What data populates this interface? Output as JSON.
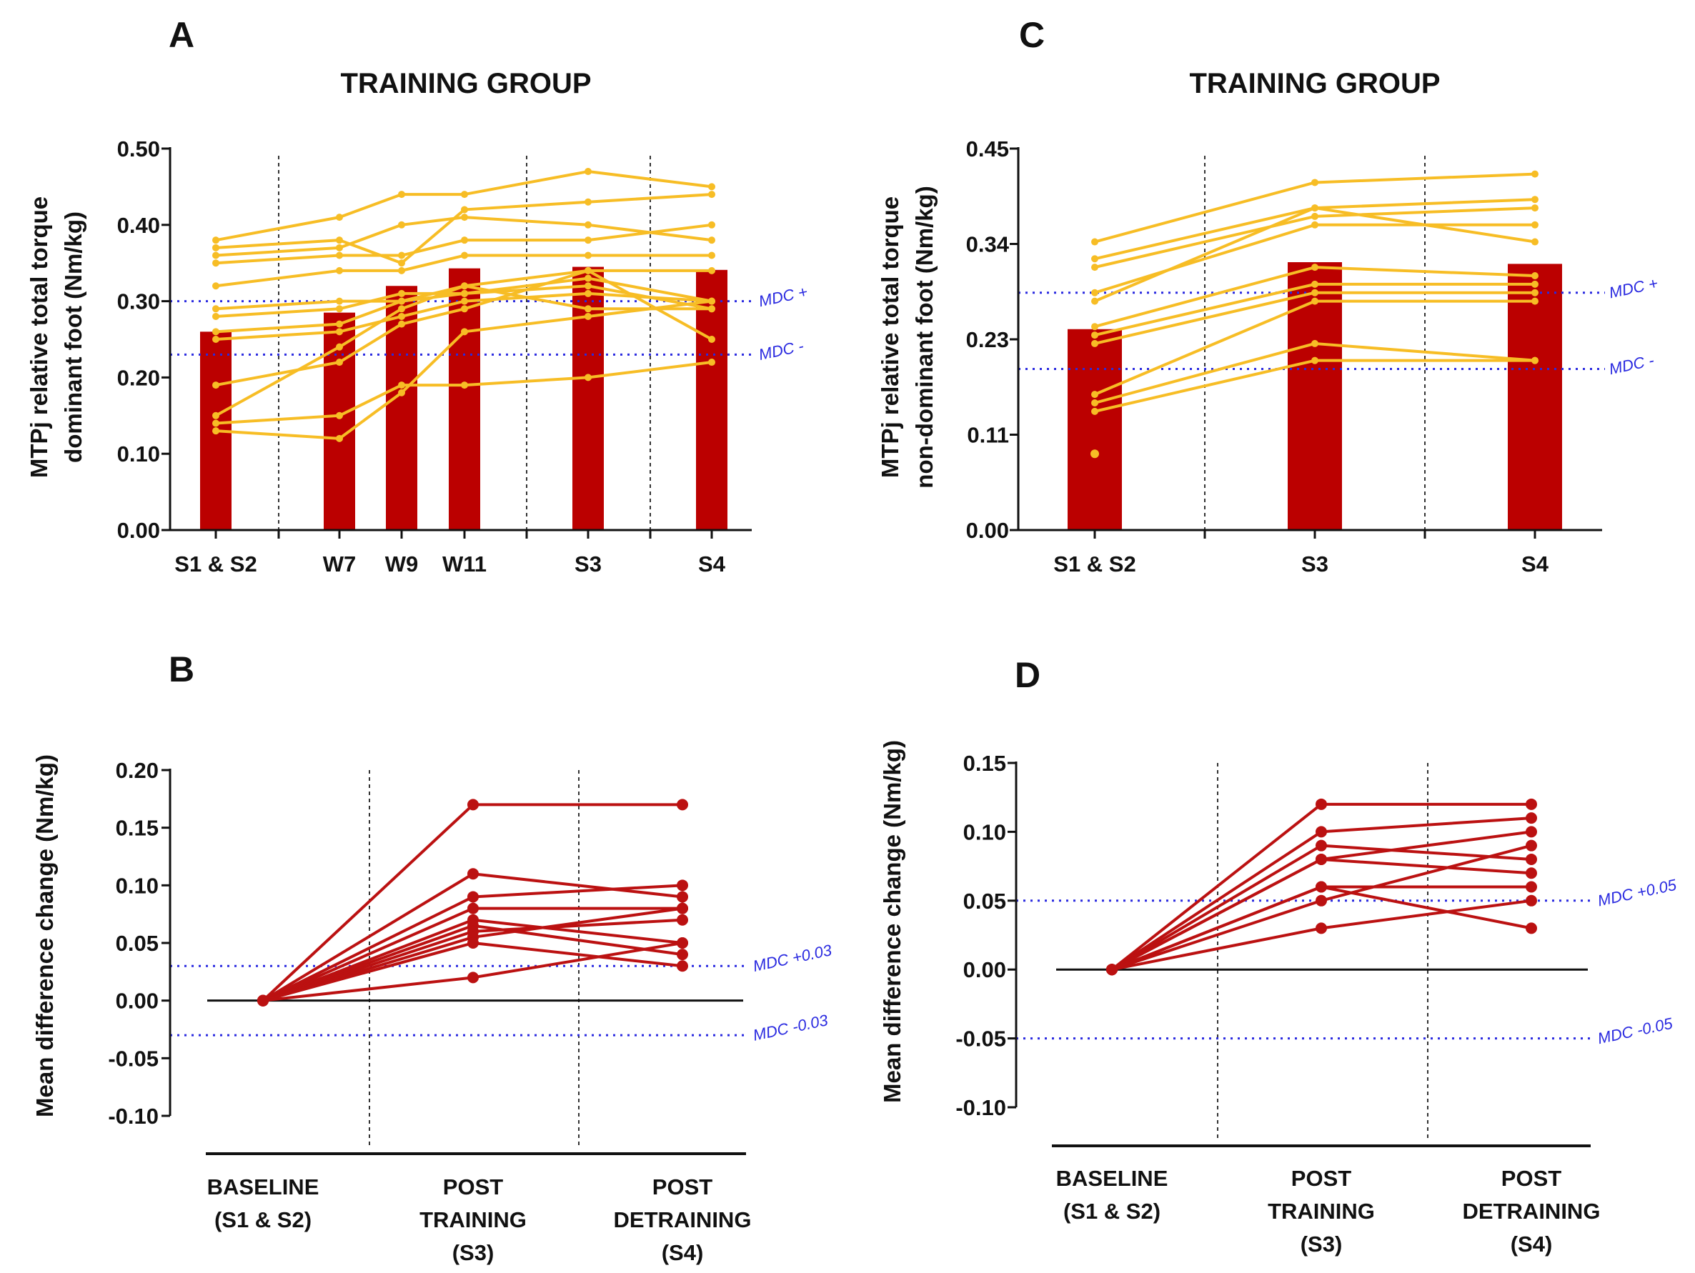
{
  "colors": {
    "bar": "#bb0000",
    "line_ab": "#f7bd25",
    "line_diff": "#bb1111",
    "mdc": "#2a2ae0",
    "axis": "#111111",
    "separator": "#333333"
  },
  "chart_data": [
    {
      "panel": "A",
      "type": "bar",
      "title": "TRAINING GROUP",
      "ylabel_lines": [
        "MTPj relative total torque",
        "dominant foot (Nm/kg)"
      ],
      "ylim": [
        0,
        0.5
      ],
      "yticks": [
        0,
        0.1,
        0.2,
        0.3,
        0.4,
        0.5
      ],
      "ytick_labels": [
        "0.00",
        "0.10",
        "0.20",
        "0.30",
        "0.40",
        "0.50"
      ],
      "categories": [
        "S1 & S2",
        "W7",
        "W9",
        "W11",
        "S3",
        "S4"
      ],
      "bar_values": [
        0.26,
        0.285,
        0.32,
        0.343,
        0.345,
        0.341
      ],
      "mdc": [
        {
          "label": "MDC +",
          "value": 0.3
        },
        {
          "label": "MDC -",
          "value": 0.23
        }
      ],
      "subjects": [
        [
          0.38,
          0.41,
          0.44,
          0.44,
          0.47,
          0.45
        ],
        [
          0.37,
          0.38,
          0.35,
          0.42,
          0.43,
          0.44
        ],
        [
          0.36,
          0.37,
          0.4,
          0.41,
          0.4,
          0.38
        ],
        [
          0.35,
          0.36,
          0.36,
          0.38,
          0.38,
          0.4
        ],
        [
          0.32,
          0.34,
          0.34,
          0.36,
          0.36,
          0.36
        ],
        [
          0.29,
          0.3,
          0.3,
          0.32,
          0.34,
          0.34
        ],
        [
          0.28,
          0.29,
          0.31,
          0.31,
          0.33,
          0.3
        ],
        [
          0.26,
          0.27,
          0.3,
          0.31,
          0.32,
          0.29
        ],
        [
          0.25,
          0.26,
          0.28,
          0.3,
          0.31,
          0.3
        ],
        [
          0.19,
          0.22,
          0.27,
          0.29,
          0.34,
          0.25
        ],
        [
          0.15,
          0.24,
          0.29,
          0.32,
          0.29,
          0.29
        ],
        [
          0.14,
          0.15,
          0.19,
          0.19,
          0.2,
          0.22
        ],
        [
          0.13,
          0.12,
          0.18,
          0.26,
          0.28,
          0.3
        ]
      ]
    },
    {
      "panel": "C",
      "type": "bar",
      "title": "TRAINING GROUP",
      "ylabel_lines": [
        "MTPj relative total torque",
        "non-dominant foot (Nm/kg)"
      ],
      "ylim": [
        0,
        0.45
      ],
      "yticks": [
        0,
        0.1125,
        0.225,
        0.3375,
        0.45
      ],
      "ytick_labels": [
        "0.00",
        "0.11",
        "0.23",
        "0.34",
        "0.45"
      ],
      "categories": [
        "S1 & S2",
        "S3",
        "S4"
      ],
      "bar_values": [
        0.237,
        0.316,
        0.314
      ],
      "mdc": [
        {
          "label": "MDC +",
          "value": 0.28
        },
        {
          "label": "MDC -",
          "value": 0.19
        }
      ],
      "subjects": [
        [
          0.34,
          0.41,
          0.42
        ],
        [
          0.32,
          0.38,
          0.39
        ],
        [
          0.31,
          0.37,
          0.38
        ],
        [
          0.28,
          0.36,
          0.36
        ],
        [
          0.27,
          0.38,
          0.34
        ],
        [
          0.24,
          0.31,
          0.3
        ],
        [
          0.23,
          0.29,
          0.29
        ],
        [
          0.22,
          0.28,
          0.28
        ],
        [
          0.16,
          0.27,
          0.27
        ],
        [
          0.15,
          0.22,
          0.2
        ],
        [
          0.14,
          0.2,
          0.2
        ]
      ],
      "extra_points": [
        [
          0,
          0.09
        ]
      ]
    },
    {
      "panel": "B",
      "type": "line",
      "ylabel_lines": [
        "Mean difference change (Nm/kg)"
      ],
      "ylim": [
        -0.1,
        0.2
      ],
      "yticks": [
        -0.1,
        -0.05,
        0,
        0.05,
        0.1,
        0.15,
        0.2
      ],
      "ytick_labels": [
        "-0.10",
        "-0.05",
        "0.00",
        "0.05",
        "0.10",
        "0.15",
        "0.20"
      ],
      "categories": [
        [
          "BASELINE",
          "(S1 & S2)"
        ],
        [
          "POST",
          "TRAINING",
          "(S3)"
        ],
        [
          "POST",
          "DETRAINING",
          "(S4)"
        ]
      ],
      "mdc": [
        {
          "label": "MDC +0.03",
          "value": 0.03
        },
        {
          "label": "MDC -0.03",
          "value": -0.03
        }
      ],
      "series": [
        [
          0,
          0.17,
          0.17
        ],
        [
          0,
          0.11,
          0.09
        ],
        [
          0,
          0.09,
          0.1
        ],
        [
          0,
          0.08,
          0.08
        ],
        [
          0,
          0.07,
          0.05
        ],
        [
          0,
          0.065,
          0.04
        ],
        [
          0,
          0.06,
          0.07
        ],
        [
          0,
          0.055,
          0.08
        ],
        [
          0,
          0.05,
          0.03
        ],
        [
          0,
          0.02,
          0.05
        ]
      ]
    },
    {
      "panel": "D",
      "type": "line",
      "ylabel_lines": [
        "Mean difference change (Nm/kg)"
      ],
      "ylim": [
        -0.1,
        0.15
      ],
      "yticks": [
        -0.1,
        -0.05,
        0,
        0.05,
        0.1,
        0.15
      ],
      "ytick_labels": [
        "-0.10",
        "-0.05",
        "0.00",
        "0.05",
        "0.10",
        "0.15"
      ],
      "categories": [
        [
          "BASELINE",
          "(S1 & S2)"
        ],
        [
          "POST",
          "TRAINING",
          "(S3)"
        ],
        [
          "POST",
          "DETRAINING",
          "(S4)"
        ]
      ],
      "mdc": [
        {
          "label": "MDC +0.05",
          "value": 0.05
        },
        {
          "label": "MDC -0.05",
          "value": -0.05
        }
      ],
      "series": [
        [
          0,
          0.12,
          0.12
        ],
        [
          0,
          0.1,
          0.11
        ],
        [
          0,
          0.09,
          0.08
        ],
        [
          0,
          0.08,
          0.1
        ],
        [
          0,
          0.08,
          0.07
        ],
        [
          0,
          0.06,
          0.06
        ],
        [
          0,
          0.05,
          0.09
        ],
        [
          0,
          0.03,
          0.05
        ],
        [
          0,
          0.06,
          0.03
        ]
      ]
    }
  ]
}
